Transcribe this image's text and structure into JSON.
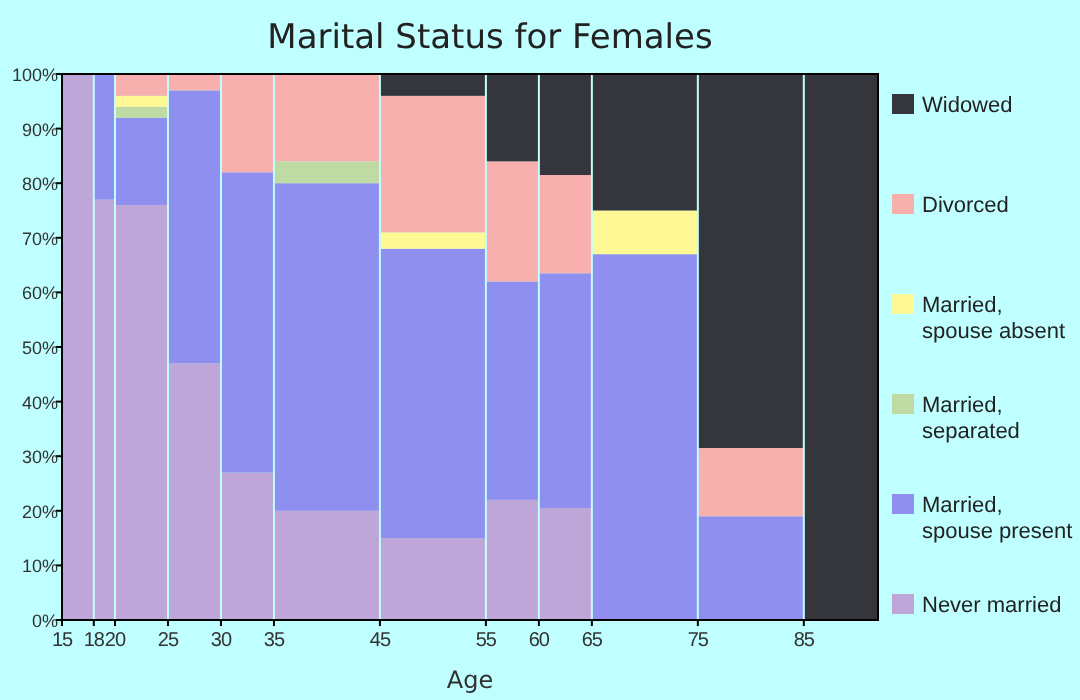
{
  "chart_data": {
    "type": "bar",
    "title": "Marital Status for Females",
    "xlabel": "Age",
    "stacked": true,
    "legend": "right",
    "grid": false,
    "x": [
      16.5,
      19,
      22.5,
      27.5,
      32.5,
      40,
      50,
      57.5,
      62.5,
      70,
      80,
      88.5
    ],
    "xlim": [
      15,
      92
    ],
    "xticks": [
      15,
      18,
      20,
      25,
      30,
      35,
      45,
      55,
      60,
      65,
      75,
      85
    ],
    "ylim": [
      0,
      100
    ],
    "yticks": [
      {
        "value": 0,
        "label": "0%"
      },
      {
        "value": 10,
        "label": "10%"
      },
      {
        "value": 20,
        "label": "20%"
      },
      {
        "value": 30,
        "label": "30%"
      },
      {
        "value": 40,
        "label": "40%"
      },
      {
        "value": 50,
        "label": "50%"
      },
      {
        "value": 60,
        "label": "60%"
      },
      {
        "value": 70,
        "label": "70%"
      },
      {
        "value": 80,
        "label": "80%"
      },
      {
        "value": 90,
        "label": "90%"
      },
      {
        "value": 100,
        "label": "100%"
      }
    ],
    "series": [
      {
        "name": "Never married",
        "color": "#bea6d8",
        "values": [
          100,
          77,
          76,
          47,
          27,
          20,
          15,
          22,
          20.5,
          null,
          null,
          null
        ]
      },
      {
        "name": "Married, spouse present",
        "color": "#8f8ff0",
        "values": [
          null,
          23,
          16,
          50,
          55,
          60,
          53,
          40,
          43,
          67,
          19,
          null
        ]
      },
      {
        "name": "Married, separated",
        "color": "#c0daa4",
        "values": [
          null,
          null,
          2,
          null,
          null,
          4,
          null,
          null,
          null,
          null,
          null,
          null
        ]
      },
      {
        "name": "Married, spouse absent",
        "color": "#fef994",
        "values": [
          null,
          null,
          2,
          null,
          null,
          null,
          3,
          null,
          null,
          8,
          null,
          null
        ]
      },
      {
        "name": "Divorced",
        "color": "#f8b0ae",
        "values": [
          null,
          null,
          4,
          3,
          18,
          16,
          25,
          22,
          18,
          null,
          12.5,
          null
        ]
      },
      {
        "name": "Widowed",
        "color": "#35363b",
        "values": [
          null,
          null,
          null,
          null,
          null,
          null,
          4,
          16,
          18.5,
          25,
          68.5,
          100
        ]
      }
    ]
  }
}
